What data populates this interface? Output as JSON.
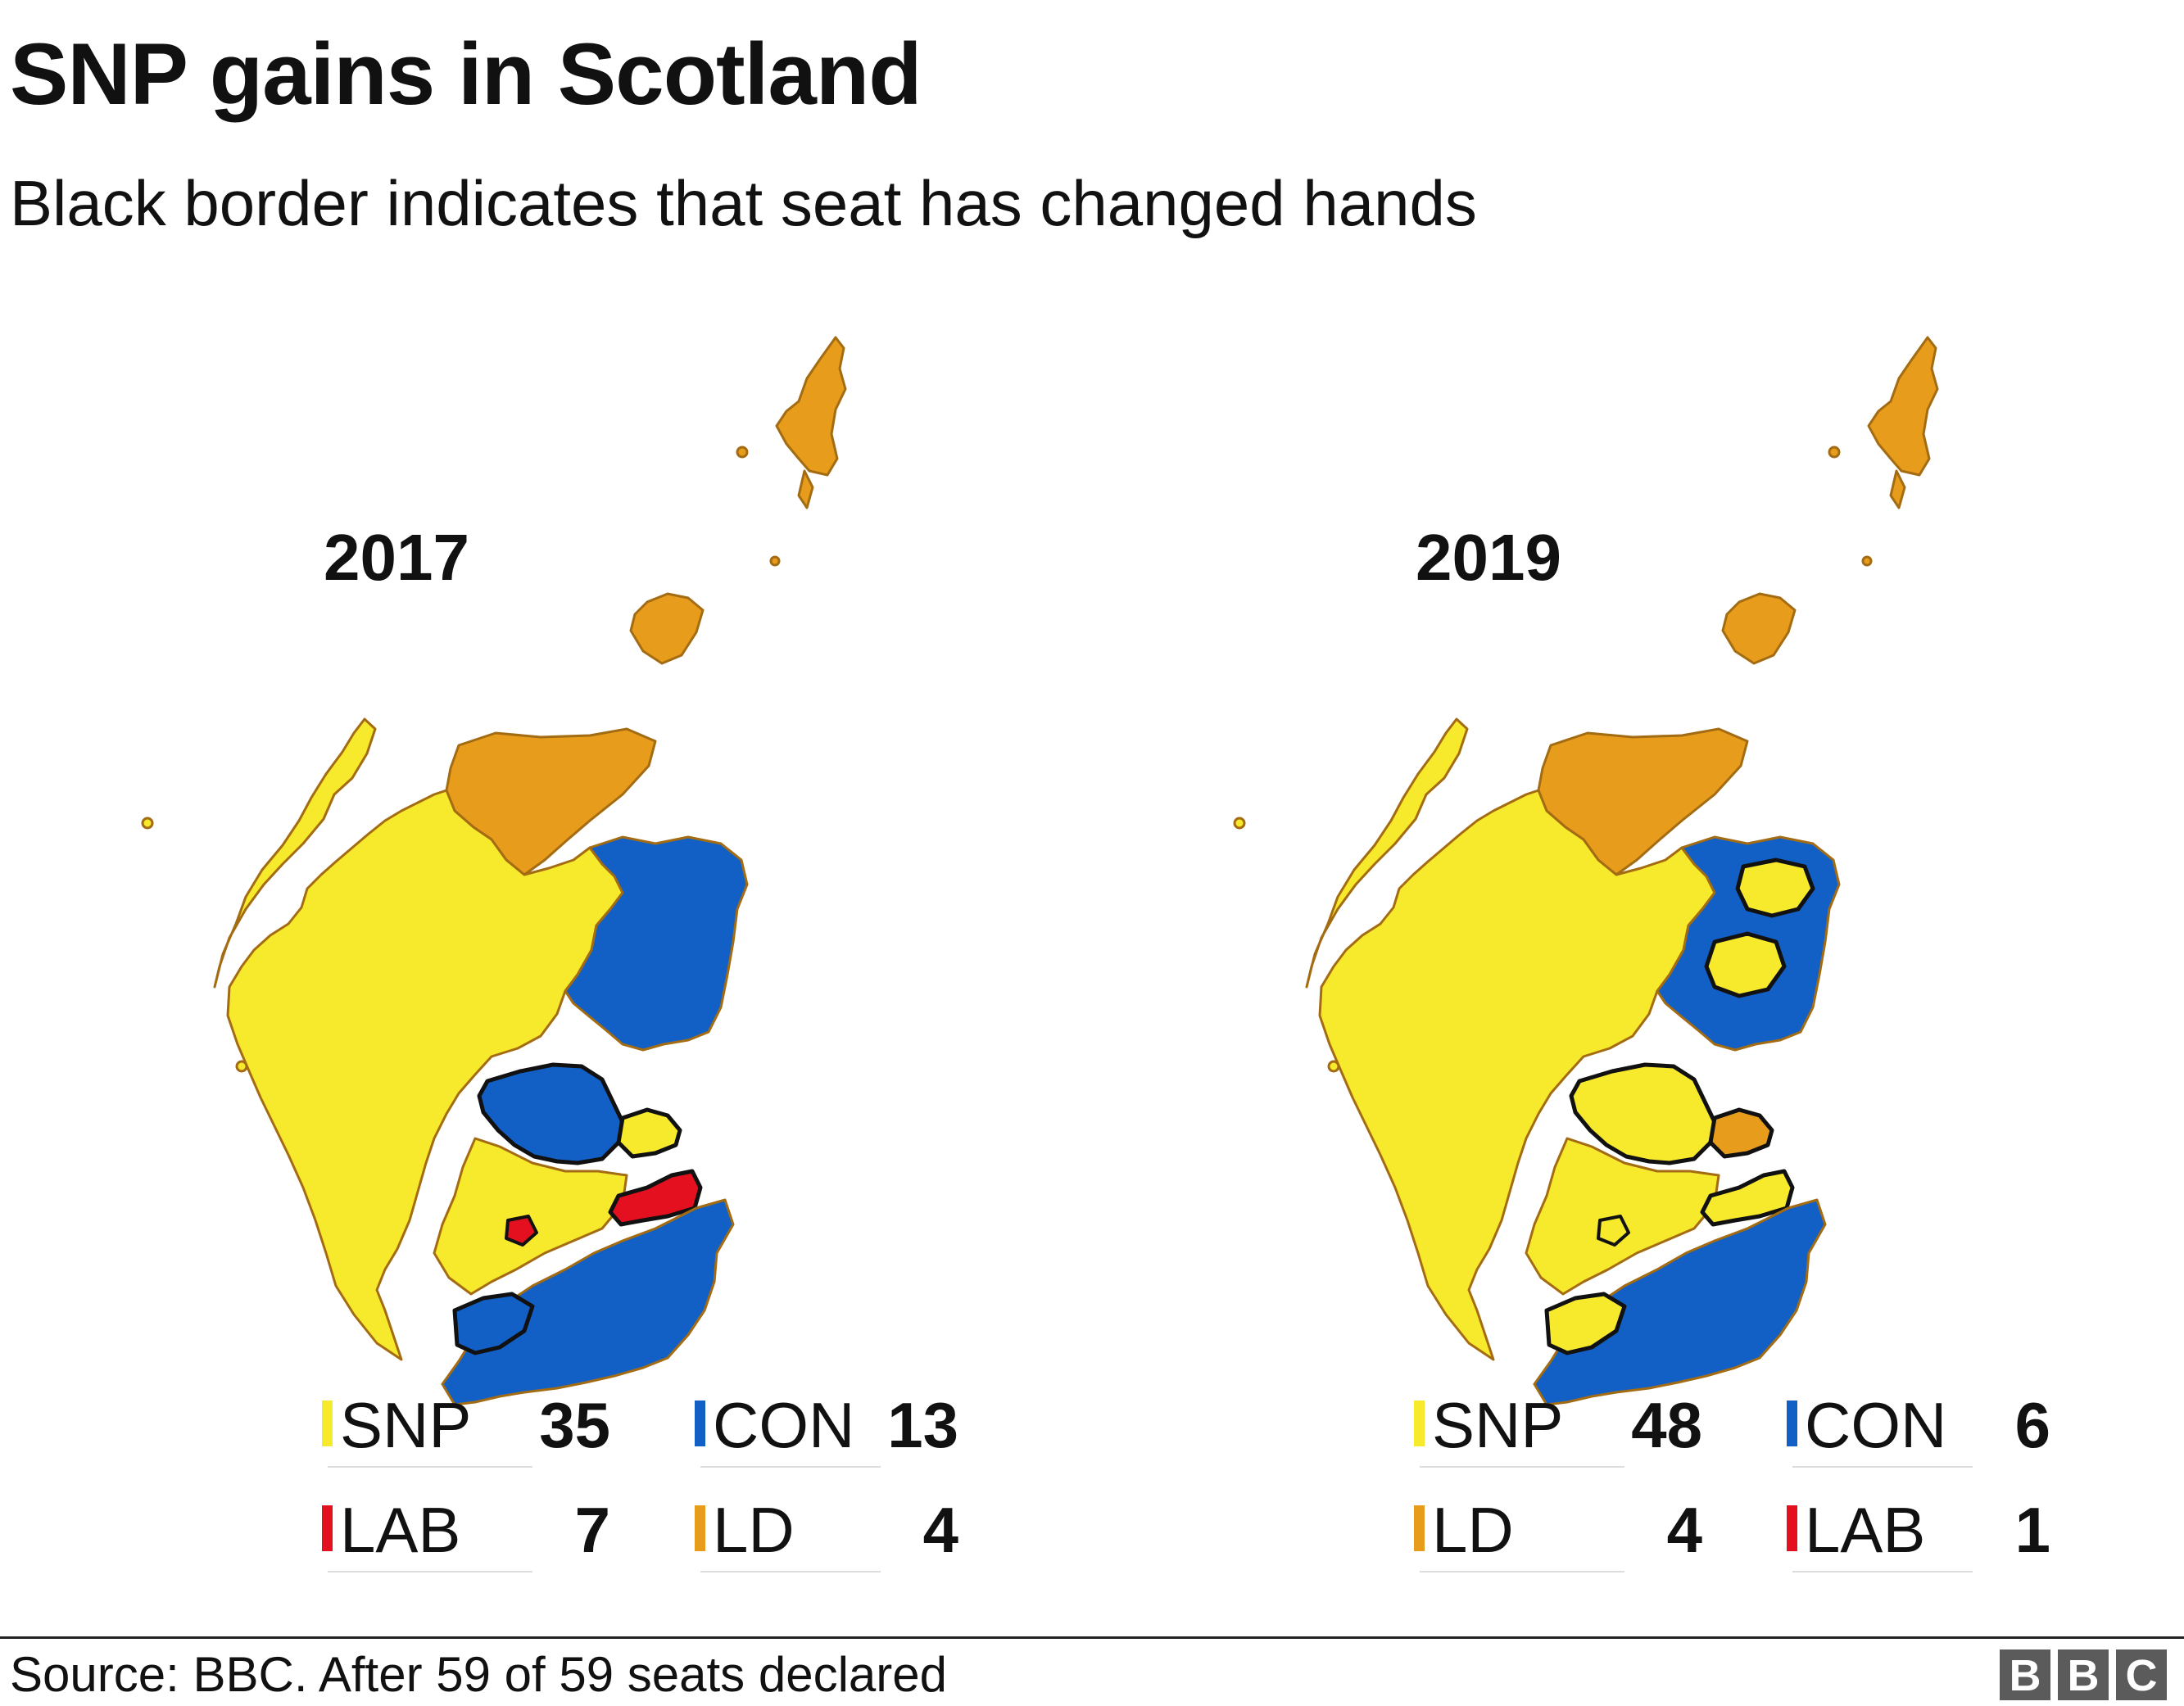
{
  "header": {
    "title": "SNP gains in Scotland",
    "subtitle": "Black border indicates that seat has changed hands"
  },
  "colors": {
    "SNP": "#f7e92c",
    "CON": "#1260c6",
    "LAB": "#e4101f",
    "LD": "#e79c1b",
    "changed_border": "#111111",
    "seat_border": "#a36c13"
  },
  "maps": [
    {
      "year": "2017",
      "legend": [
        {
          "party": "SNP",
          "seats": "35"
        },
        {
          "party": "CON",
          "seats": "13"
        },
        {
          "party": "LAB",
          "seats": "7"
        },
        {
          "party": "LD",
          "seats": "4"
        }
      ]
    },
    {
      "year": "2019",
      "legend": [
        {
          "party": "SNP",
          "seats": "48"
        },
        {
          "party": "CON",
          "seats": "6"
        },
        {
          "party": "LD",
          "seats": "4"
        },
        {
          "party": "LAB",
          "seats": "1"
        }
      ]
    }
  ],
  "footer": {
    "source": "Source: BBC. After 59 of 59 seats declared",
    "logo_letters": [
      "B",
      "B",
      "C"
    ]
  }
}
